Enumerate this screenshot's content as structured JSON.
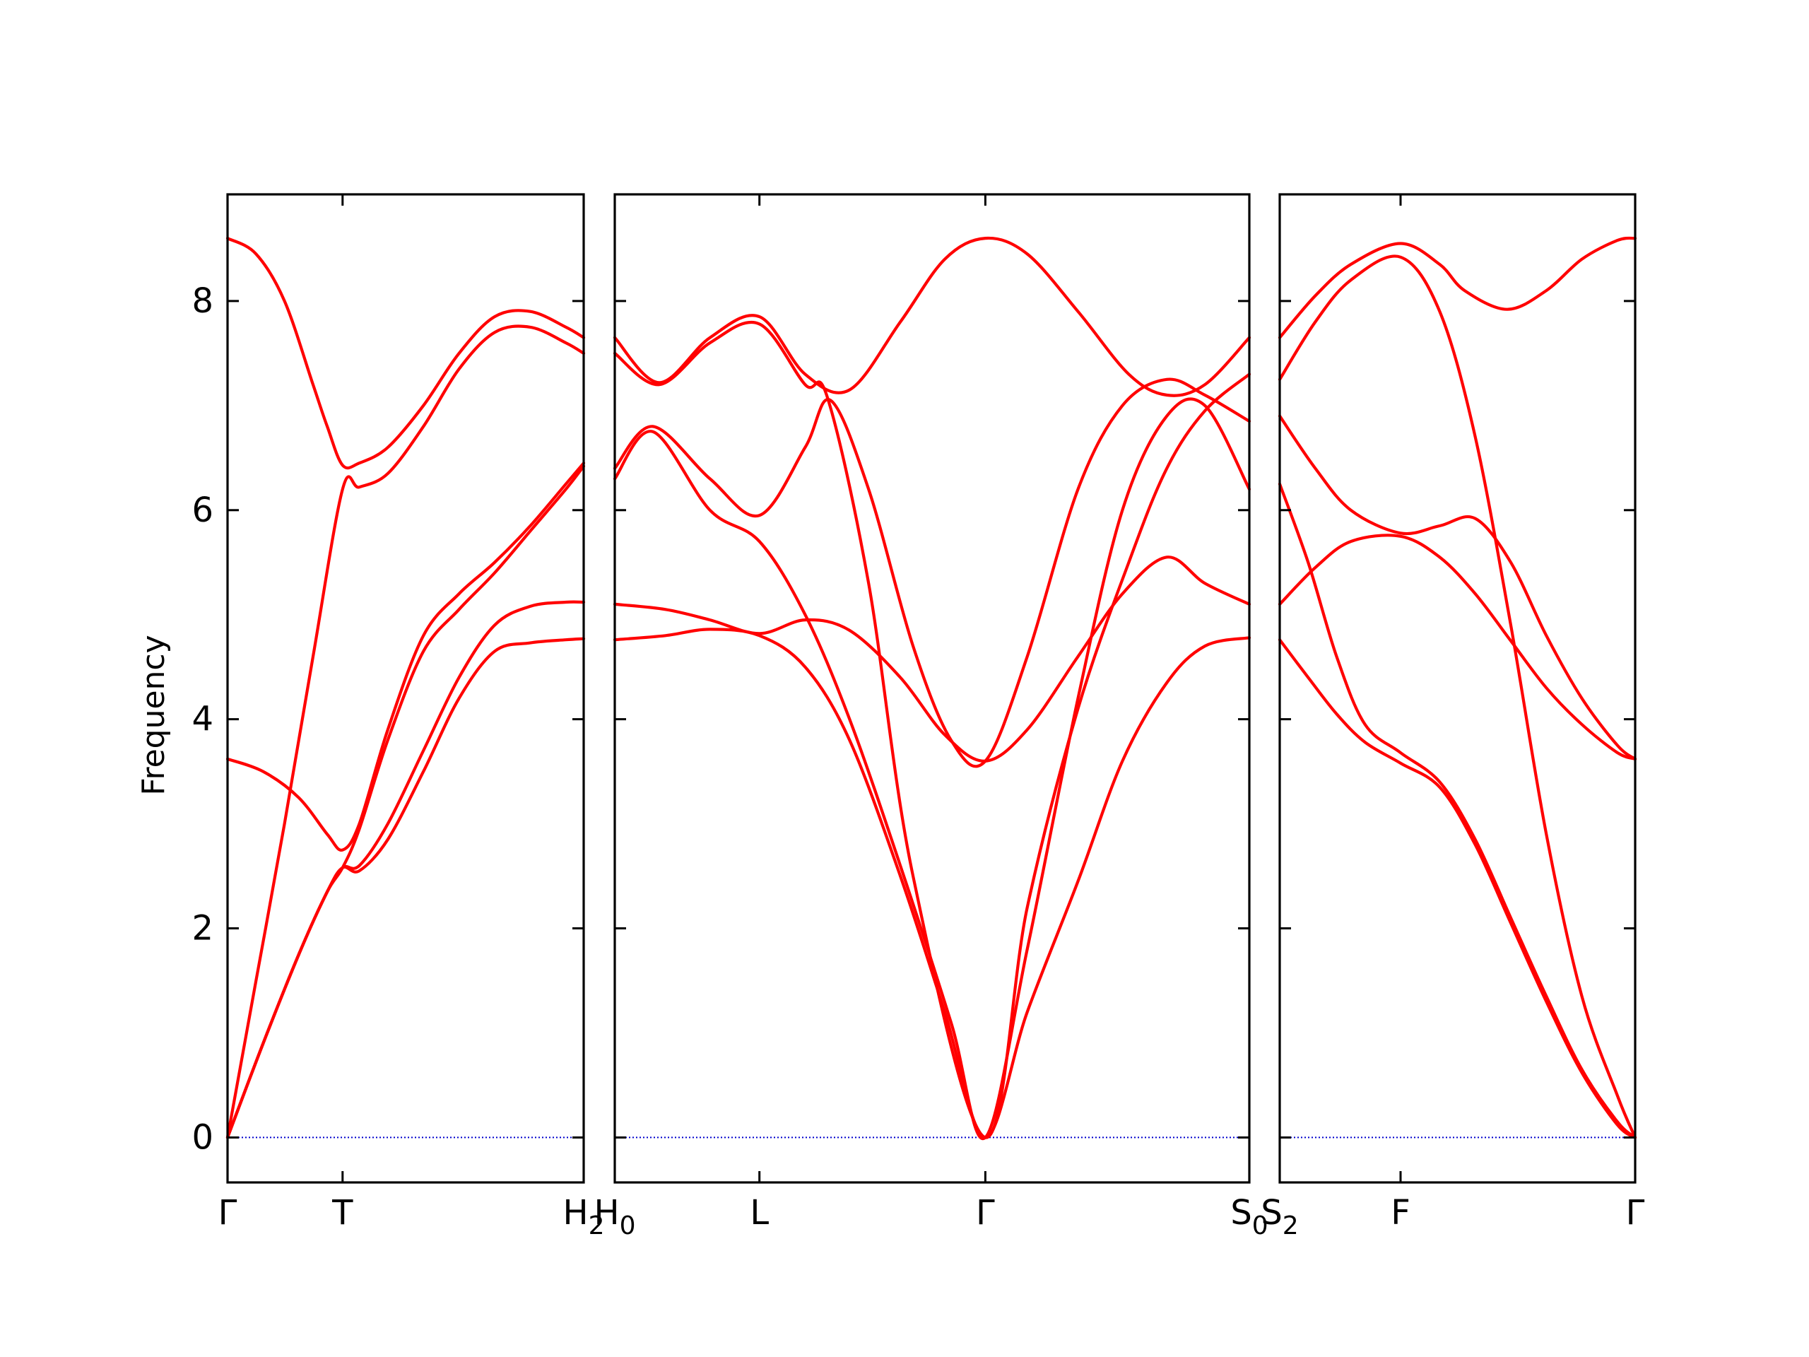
{
  "chart_data": {
    "type": "line",
    "title": "",
    "ylabel": "Frequency",
    "ylim": [
      -0.43,
      9.02
    ],
    "yticks": [
      0,
      2,
      4,
      6,
      8
    ],
    "grid": false,
    "colors": {
      "bands": "#ff0000",
      "zero_line": "#0000cc",
      "axes": "#000000"
    },
    "panels": [
      {
        "name": "Γ-T-H2",
        "xlim": [
          0,
          1
        ],
        "xticks": [
          {
            "pos": 0.0,
            "label": "Γ",
            "sub": ""
          },
          {
            "pos": 0.323,
            "label": "T",
            "sub": ""
          },
          {
            "pos": 1.0,
            "label": "H",
            "sub": "2"
          }
        ],
        "series": [
          {
            "x": [
              0,
              0.08,
              0.16,
              0.24,
              0.28,
              0.323,
              0.37,
              0.45,
              0.55,
              0.65,
              0.75,
              0.85,
              0.95,
              1.0
            ],
            "y": [
              8.6,
              8.45,
              8.0,
              7.2,
              6.8,
              6.43,
              6.45,
              6.6,
              7.0,
              7.5,
              7.85,
              7.9,
              7.75,
              7.65
            ]
          },
          {
            "x": [
              0,
              0.08,
              0.16,
              0.24,
              0.323,
              0.37,
              0.45,
              0.55,
              0.65,
              0.75,
              0.85,
              0.95,
              1.0
            ],
            "y": [
              0,
              1.5,
              3.0,
              4.6,
              6.2,
              6.22,
              6.35,
              6.8,
              7.35,
              7.7,
              7.75,
              7.6,
              7.5
            ]
          },
          {
            "x": [
              0,
              0.1,
              0.2,
              0.28,
              0.323,
              0.37,
              0.45,
              0.55,
              0.65,
              0.75,
              0.85,
              0.95,
              1.0
            ],
            "y": [
              3.62,
              3.5,
              3.25,
              2.9,
              2.75,
              3.0,
              3.9,
              4.8,
              5.2,
              5.5,
              5.85,
              6.25,
              6.45
            ]
          },
          {
            "x": [
              0,
              0.1,
              0.2,
              0.28,
              0.323,
              0.37,
              0.45,
              0.55,
              0.65,
              0.75,
              0.85,
              0.95,
              1.0
            ],
            "y": [
              0,
              0.9,
              1.75,
              2.35,
              2.58,
              2.95,
              3.8,
              4.65,
              5.05,
              5.4,
              5.8,
              6.2,
              6.42
            ]
          },
          {
            "x": [
              0,
              0.1,
              0.2,
              0.28,
              0.323,
              0.37,
              0.45,
              0.55,
              0.65,
              0.75,
              0.85,
              0.95,
              1.0
            ],
            "y": [
              0,
              0.9,
              1.75,
              2.35,
              2.58,
              2.6,
              3.0,
              3.7,
              4.4,
              4.9,
              5.08,
              5.12,
              5.12
            ]
          },
          {
            "x": [
              0,
              0.1,
              0.2,
              0.28,
              0.323,
              0.37,
              0.45,
              0.55,
              0.65,
              0.75,
              0.85,
              0.95,
              1.0
            ],
            "y": [
              0,
              0.9,
              1.75,
              2.35,
              2.58,
              2.55,
              2.85,
              3.5,
              4.2,
              4.65,
              4.73,
              4.76,
              4.77
            ]
          }
        ]
      },
      {
        "name": "H0-L-Γ-S0",
        "xlim": [
          0,
          1
        ],
        "xticks": [
          {
            "pos": 0.0,
            "label": "H",
            "sub": "0"
          },
          {
            "pos": 0.228,
            "label": "L",
            "sub": ""
          },
          {
            "pos": 0.584,
            "label": "Γ",
            "sub": ""
          },
          {
            "pos": 1.0,
            "label": "S",
            "sub": "0"
          }
        ],
        "series": [
          {
            "x": [
              0,
              0.07,
              0.15,
              0.228,
              0.3,
              0.37,
              0.45,
              0.52,
              0.584,
              0.65,
              0.73,
              0.81,
              0.87,
              0.93,
              1.0
            ],
            "y": [
              7.65,
              7.22,
              7.65,
              7.85,
              7.3,
              7.15,
              7.8,
              8.4,
              8.6,
              8.45,
              7.9,
              7.3,
              7.1,
              7.2,
              7.65
            ]
          },
          {
            "x": [
              0,
              0.07,
              0.15,
              0.228,
              0.3,
              0.335,
              0.4,
              0.47,
              0.584,
              0.65,
              0.73,
              0.81,
              0.87,
              0.93,
              1.0
            ],
            "y": [
              7.5,
              7.2,
              7.6,
              7.78,
              7.2,
              7.08,
              5.3,
              2.5,
              0,
              2.2,
              4.1,
              5.5,
              6.4,
              6.95,
              7.3
            ]
          },
          {
            "x": [
              0,
              0.06,
              0.15,
              0.228,
              0.3,
              0.34,
              0.4,
              0.47,
              0.53,
              0.584,
              0.65,
              0.73,
              0.8,
              0.87,
              0.93,
              1.0
            ],
            "y": [
              6.4,
              6.8,
              6.3,
              5.95,
              6.6,
              7.05,
              6.2,
              4.7,
              3.8,
              3.6,
              4.6,
              6.2,
              7.0,
              7.25,
              7.1,
              6.85
            ]
          },
          {
            "x": [
              0,
              0.06,
              0.15,
              0.228,
              0.3,
              0.37,
              0.45,
              0.53,
              0.584,
              0.65,
              0.73,
              0.8,
              0.87,
              0.93,
              1.0
            ],
            "y": [
              6.3,
              6.75,
              6.0,
              5.7,
              5.0,
              4.0,
              2.6,
              1.1,
              0,
              1.8,
              4.2,
              6.0,
              6.9,
              7.0,
              6.2
            ]
          },
          {
            "x": [
              0,
              0.08,
              0.15,
              0.228,
              0.3,
              0.37,
              0.45,
              0.52,
              0.584,
              0.65,
              0.73,
              0.8,
              0.87,
              0.93,
              1.0
            ],
            "y": [
              5.1,
              5.05,
              4.95,
              4.82,
              4.95,
              4.85,
              4.4,
              3.85,
              3.6,
              3.9,
              4.6,
              5.2,
              5.55,
              5.3,
              5.1
            ]
          },
          {
            "x": [
              0,
              0.08,
              0.15,
              0.228,
              0.3,
              0.37,
              0.45,
              0.52,
              0.584,
              0.65,
              0.73,
              0.8,
              0.87,
              0.93,
              1.0
            ],
            "y": [
              4.76,
              4.8,
              4.86,
              4.8,
              4.5,
              3.8,
              2.5,
              1.2,
              0,
              1.2,
              2.45,
              3.6,
              4.35,
              4.7,
              4.78
            ]
          }
        ]
      },
      {
        "name": "S2-F-Γ",
        "xlim": [
          0,
          1
        ],
        "xticks": [
          {
            "pos": 0.0,
            "label": "S",
            "sub": "2"
          },
          {
            "pos": 0.34,
            "label": "F",
            "sub": ""
          },
          {
            "pos": 1.0,
            "label": "Γ",
            "sub": ""
          }
        ],
        "series": [
          {
            "x": [
              0,
              0.1,
              0.2,
              0.34,
              0.45,
              0.52,
              0.64,
              0.75,
              0.85,
              0.95,
              1.0
            ],
            "y": [
              7.65,
              8.05,
              8.35,
              8.55,
              8.35,
              8.1,
              7.92,
              8.1,
              8.4,
              8.58,
              8.6
            ]
          },
          {
            "x": [
              0,
              0.1,
              0.2,
              0.34,
              0.45,
              0.55,
              0.65,
              0.75,
              0.85,
              0.95,
              1.0
            ],
            "y": [
              7.25,
              7.8,
              8.2,
              8.42,
              7.9,
              6.7,
              4.9,
              2.9,
              1.35,
              0.4,
              0
            ]
          },
          {
            "x": [
              0,
              0.1,
              0.2,
              0.34,
              0.45,
              0.55,
              0.65,
              0.75,
              0.85,
              0.95,
              1.0
            ],
            "y": [
              6.9,
              6.4,
              6.0,
              5.78,
              5.85,
              5.92,
              5.5,
              4.8,
              4.2,
              3.75,
              3.62
            ]
          },
          {
            "x": [
              0,
              0.1,
              0.2,
              0.34,
              0.45,
              0.55,
              0.65,
              0.75,
              0.85,
              0.95,
              1.0
            ],
            "y": [
              5.1,
              5.45,
              5.7,
              5.75,
              5.55,
              5.2,
              4.75,
              4.3,
              3.95,
              3.68,
              3.62
            ]
          },
          {
            "x": [
              0,
              0.08,
              0.16,
              0.24,
              0.34,
              0.45,
              0.55,
              0.65,
              0.75,
              0.85,
              0.95,
              1.0
            ],
            "y": [
              6.25,
              5.5,
              4.6,
              3.95,
              3.68,
              3.4,
              2.85,
              2.1,
              1.35,
              0.65,
              0.15,
              0
            ]
          },
          {
            "x": [
              0,
              0.08,
              0.16,
              0.24,
              0.34,
              0.45,
              0.55,
              0.65,
              0.75,
              0.85,
              0.95,
              1.0
            ],
            "y": [
              4.76,
              4.4,
              4.05,
              3.78,
              3.58,
              3.35,
              2.8,
              2.05,
              1.3,
              0.62,
              0.12,
              0
            ]
          }
        ]
      }
    ]
  }
}
